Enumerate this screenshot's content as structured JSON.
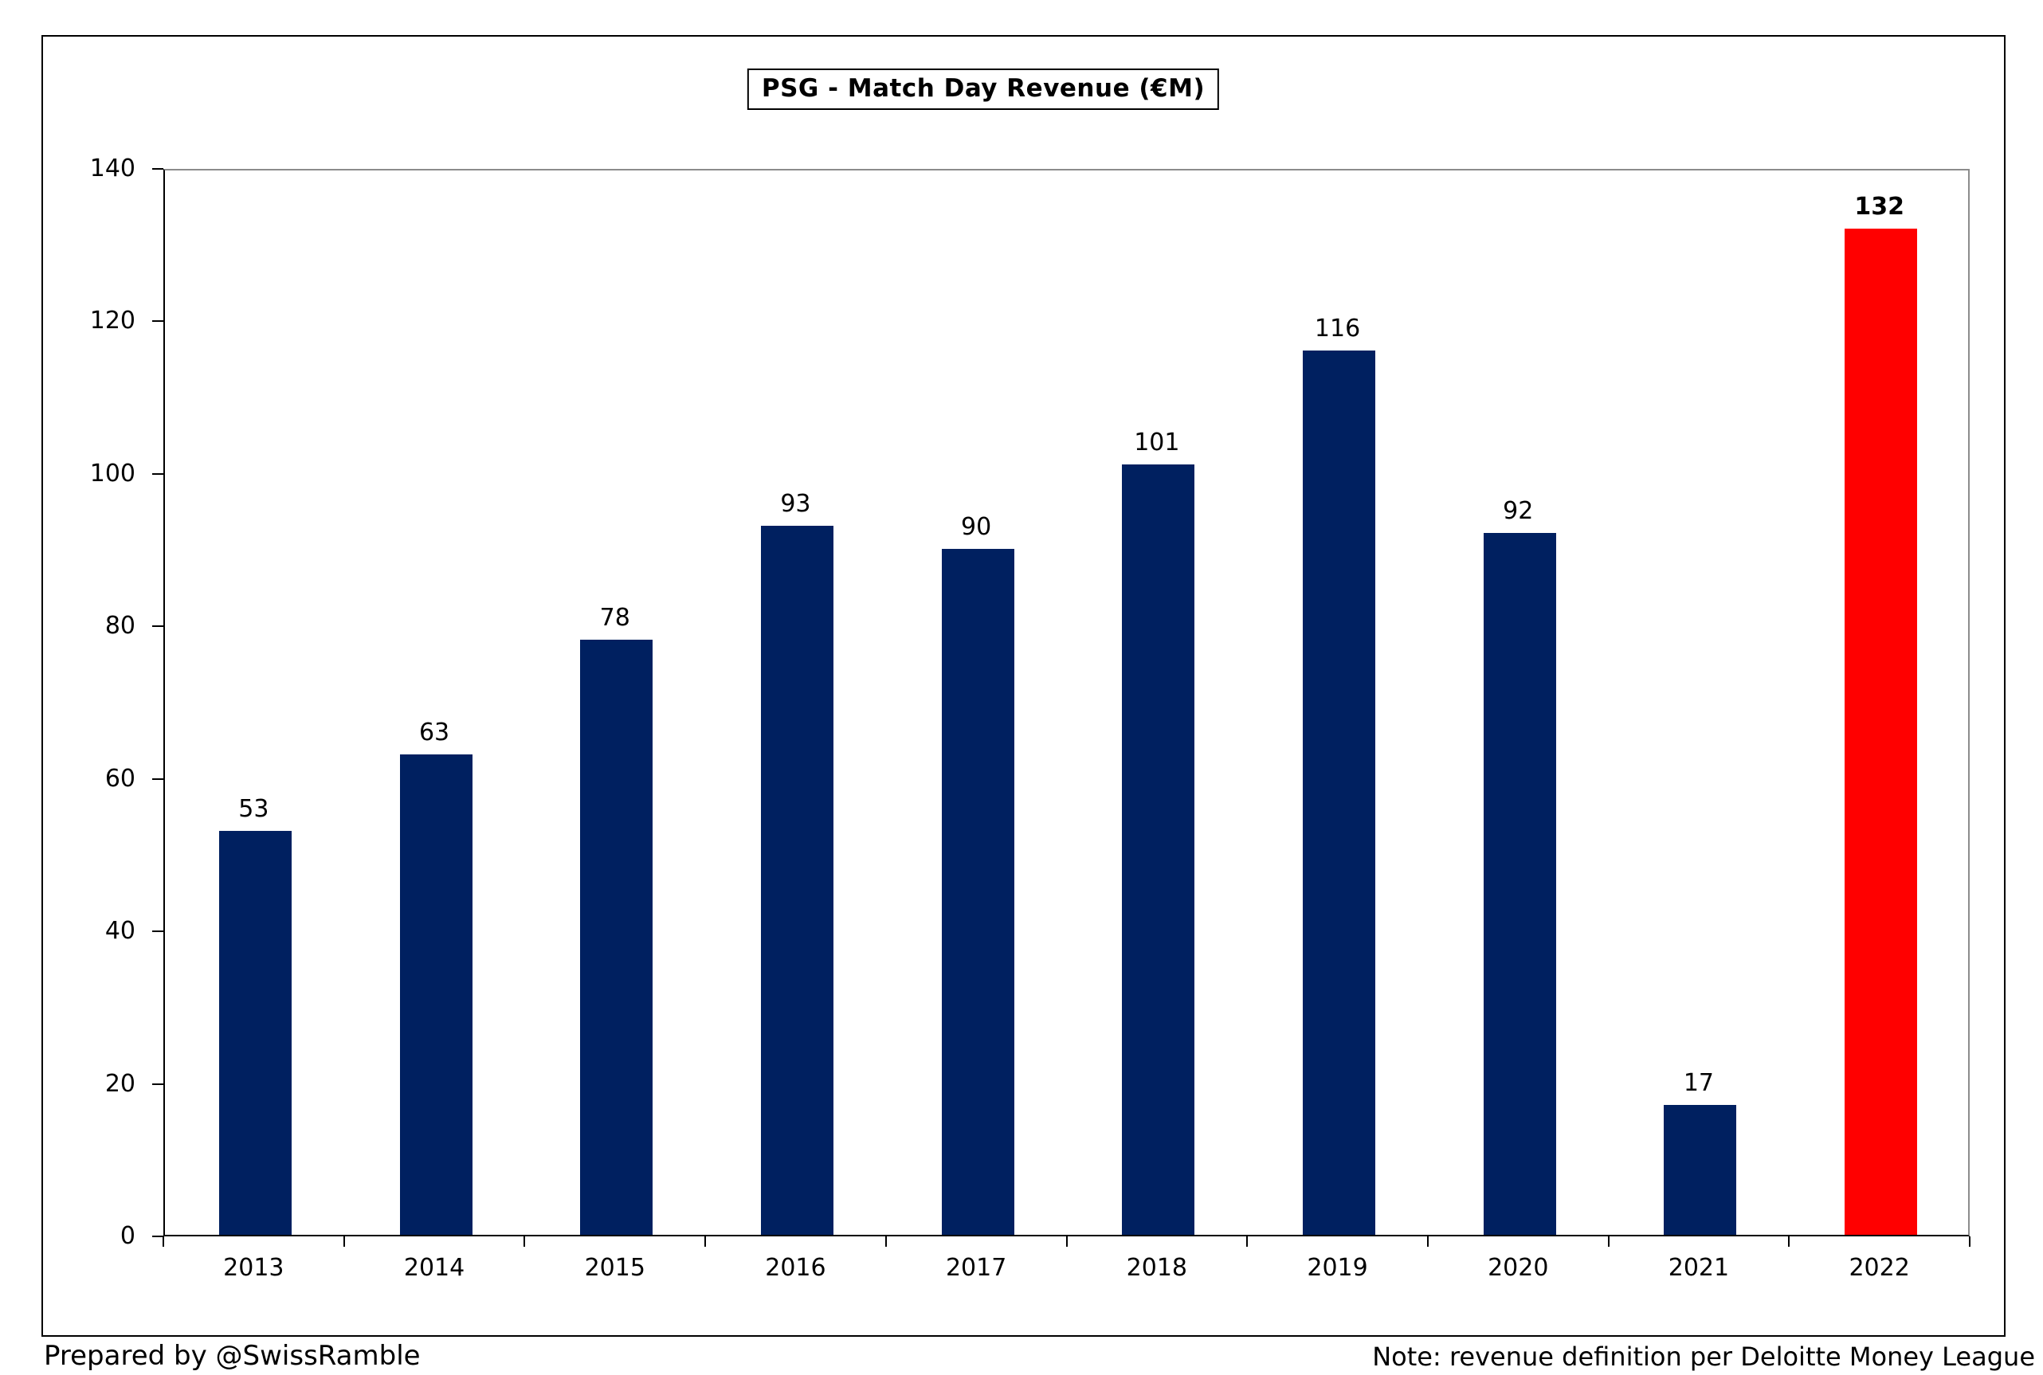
{
  "chart_data": {
    "type": "bar",
    "title": "PSG - Match Day Revenue (€M)",
    "categories": [
      "2013",
      "2014",
      "2015",
      "2016",
      "2017",
      "2018",
      "2019",
      "2020",
      "2021",
      "2022"
    ],
    "values": [
      53,
      63,
      78,
      93,
      90,
      101,
      116,
      92,
      17,
      132
    ],
    "xlabel": "",
    "ylabel": "",
    "ylim": [
      0,
      140
    ],
    "yticks": [
      0,
      20,
      40,
      60,
      80,
      100,
      120,
      140
    ],
    "grid": false,
    "legend_position": "none",
    "data_labels": true,
    "colors": {
      "bar": "#002060",
      "highlight": "#ff0000",
      "axis": "#000000",
      "plot_border_gray": "#8c8c8c"
    },
    "highlight_index": 9,
    "highlight_label_bold": true
  },
  "footer": {
    "left": "Prepared by @SwissRamble",
    "right": "Note: revenue definition per Deloitte Money League"
  }
}
